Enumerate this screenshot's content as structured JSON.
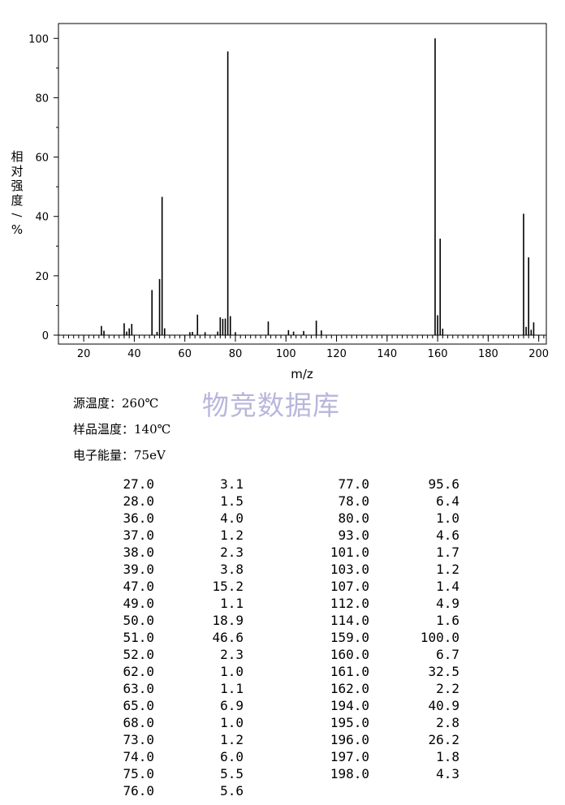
{
  "chart_data": {
    "type": "bar",
    "title": "",
    "xlabel": "m/z",
    "ylabel": "相对强度/%",
    "xlim": [
      10,
      203
    ],
    "ylim": [
      0,
      105
    ],
    "xticks": [
      20,
      40,
      60,
      80,
      100,
      120,
      140,
      160,
      180,
      200
    ],
    "yticks": [
      0,
      20,
      40,
      60,
      80,
      100
    ],
    "grid": false,
    "x": [
      27,
      28,
      36,
      37,
      38,
      39,
      47,
      49,
      50,
      51,
      52,
      62,
      63,
      65,
      68,
      73,
      74,
      75,
      76,
      77,
      78,
      80,
      93,
      101,
      103,
      107,
      112,
      114,
      159,
      160,
      161,
      162,
      194,
      195,
      196,
      197,
      198
    ],
    "values": [
      3.1,
      1.5,
      4.0,
      1.2,
      2.3,
      3.8,
      15.2,
      1.1,
      18.9,
      46.6,
      2.3,
      1.0,
      1.1,
      6.9,
      1.0,
      1.2,
      6.0,
      5.5,
      5.6,
      95.6,
      6.4,
      1.0,
      4.6,
      1.7,
      1.2,
      1.4,
      4.9,
      1.6,
      100.0,
      6.7,
      32.5,
      2.2,
      40.9,
      2.8,
      26.2,
      1.8,
      4.3
    ]
  },
  "watermark": "物竞数据库",
  "conditions": {
    "source_temp": "源温度：260℃",
    "sample_temp": "样品温度：140℃",
    "electron_energy": "电子能量：75eV"
  },
  "peak_table": {
    "left": [
      {
        "mz": "27.0",
        "intensity": "3.1"
      },
      {
        "mz": "28.0",
        "intensity": "1.5"
      },
      {
        "mz": "36.0",
        "intensity": "4.0"
      },
      {
        "mz": "37.0",
        "intensity": "1.2"
      },
      {
        "mz": "38.0",
        "intensity": "2.3"
      },
      {
        "mz": "39.0",
        "intensity": "3.8"
      },
      {
        "mz": "47.0",
        "intensity": "15.2"
      },
      {
        "mz": "49.0",
        "intensity": "1.1"
      },
      {
        "mz": "50.0",
        "intensity": "18.9"
      },
      {
        "mz": "51.0",
        "intensity": "46.6"
      },
      {
        "mz": "52.0",
        "intensity": "2.3"
      },
      {
        "mz": "62.0",
        "intensity": "1.0"
      },
      {
        "mz": "63.0",
        "intensity": "1.1"
      },
      {
        "mz": "65.0",
        "intensity": "6.9"
      },
      {
        "mz": "68.0",
        "intensity": "1.0"
      },
      {
        "mz": "73.0",
        "intensity": "1.2"
      },
      {
        "mz": "74.0",
        "intensity": "6.0"
      },
      {
        "mz": "75.0",
        "intensity": "5.5"
      },
      {
        "mz": "76.0",
        "intensity": "5.6"
      }
    ],
    "right": [
      {
        "mz": "77.0",
        "intensity": "95.6"
      },
      {
        "mz": "78.0",
        "intensity": "6.4"
      },
      {
        "mz": "80.0",
        "intensity": "1.0"
      },
      {
        "mz": "93.0",
        "intensity": "4.6"
      },
      {
        "mz": "101.0",
        "intensity": "1.7"
      },
      {
        "mz": "103.0",
        "intensity": "1.2"
      },
      {
        "mz": "107.0",
        "intensity": "1.4"
      },
      {
        "mz": "112.0",
        "intensity": "4.9"
      },
      {
        "mz": "114.0",
        "intensity": "1.6"
      },
      {
        "mz": "159.0",
        "intensity": "100.0"
      },
      {
        "mz": "160.0",
        "intensity": "6.7"
      },
      {
        "mz": "161.0",
        "intensity": "32.5"
      },
      {
        "mz": "162.0",
        "intensity": "2.2"
      },
      {
        "mz": "194.0",
        "intensity": "40.9"
      },
      {
        "mz": "195.0",
        "intensity": "2.8"
      },
      {
        "mz": "196.0",
        "intensity": "26.2"
      },
      {
        "mz": "197.0",
        "intensity": "1.8"
      },
      {
        "mz": "198.0",
        "intensity": "4.3"
      }
    ]
  }
}
